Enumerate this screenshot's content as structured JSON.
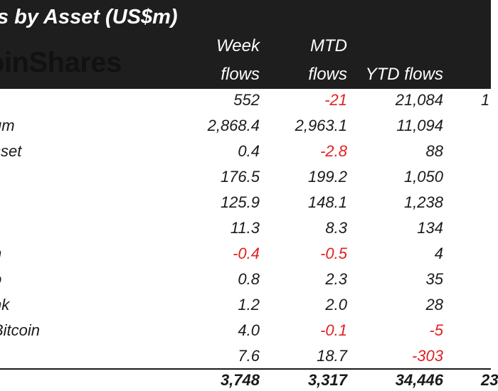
{
  "header": {
    "title": "s by Asset (US$m)",
    "logo": "oinShares",
    "columns": [
      {
        "line1": "Week",
        "line2": "flows"
      },
      {
        "line1": "MTD",
        "line2": "flows"
      },
      {
        "line1": "",
        "line2": "YTD flows"
      }
    ]
  },
  "rows": [
    {
      "name": "",
      "week": "552",
      "mtd": "-21",
      "ytd": "21,084",
      "extra": "1"
    },
    {
      "name": "um",
      "week": "2,868.4",
      "mtd": "2,963.1",
      "ytd": "11,094",
      "extra": ""
    },
    {
      "name": "sset",
      "week": "0.4",
      "mtd": "-2.8",
      "ytd": "88",
      "extra": ""
    },
    {
      "name": "",
      "week": "176.5",
      "mtd": "199.2",
      "ytd": "1,050",
      "extra": ""
    },
    {
      "name": "",
      "week": "125.9",
      "mtd": "148.1",
      "ytd": "1,238",
      "extra": ""
    },
    {
      "name": "",
      "week": "11.3",
      "mtd": "8.3",
      "ytd": "134",
      "extra": ""
    },
    {
      "name": "n",
      "week": "-0.4",
      "mtd": "-0.5",
      "ytd": "4",
      "extra": ""
    },
    {
      "name": "o",
      "week": "0.8",
      "mtd": "2.3",
      "ytd": "35",
      "extra": ""
    },
    {
      "name": "nk",
      "week": "1.2",
      "mtd": "2.0",
      "ytd": "28",
      "extra": ""
    },
    {
      "name": "Bitcoin",
      "week": "4.0",
      "mtd": "-0.1",
      "ytd": "-5",
      "extra": ""
    },
    {
      "name": "",
      "week": "7.6",
      "mtd": "18.7",
      "ytd": "-303",
      "extra": ""
    }
  ],
  "total": {
    "week": "3,748",
    "mtd": "3,317",
    "ytd": "34,446",
    "extra": "23"
  },
  "colors": {
    "header_bg": "#1e1e1e",
    "negative": "#e02020",
    "text": "#1a1a1a"
  }
}
